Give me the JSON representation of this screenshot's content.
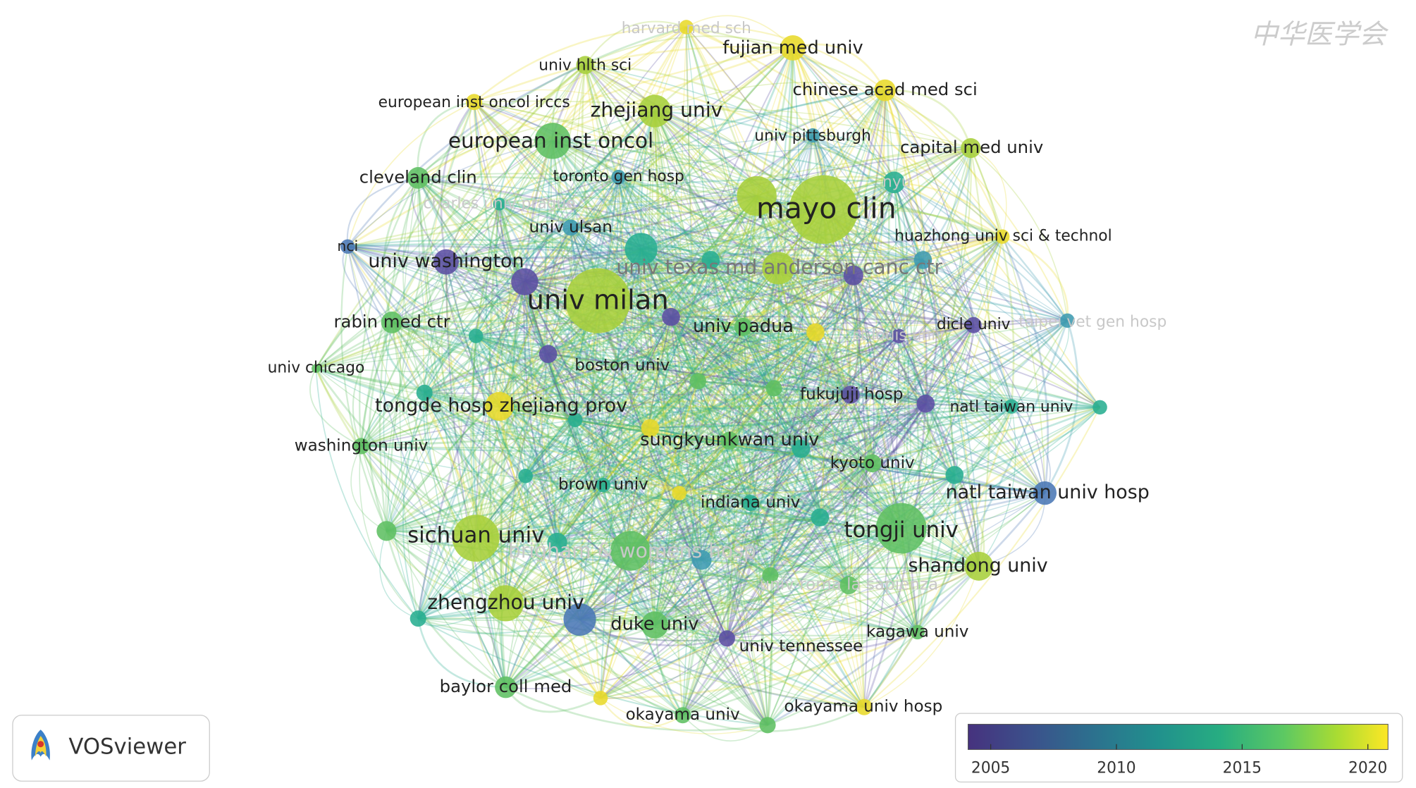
{
  "nodes": [
    {
      "label": "harvard med sch"
    },
    {
      "label": "fujian med univ"
    },
    {
      "label": "univ hlth sci"
    },
    {
      "label": "european inst oncol irccs"
    },
    {
      "label": "chinese acad med sci"
    },
    {
      "label": "zhejiang univ"
    },
    {
      "label": "univ pittsburgh"
    },
    {
      "label": "european inst oncol"
    },
    {
      "label": "capital med univ"
    },
    {
      "label": "cleveland clin"
    },
    {
      "label": "toronto gen hosp"
    },
    {
      "label": "nyu"
    },
    {
      "label": "charles univ prague"
    },
    {
      "label": "mayo clin"
    },
    {
      "label": "univ ulsan"
    },
    {
      "label": "huazhong univ sci & technol"
    },
    {
      "label": "nci"
    },
    {
      "label": "univ washington"
    },
    {
      "label": "univ texas md anderson canc ctr"
    },
    {
      "label": "univ milan"
    },
    {
      "label": "rabin med ctr"
    },
    {
      "label": "univ padua"
    },
    {
      "label": "st louis univ"
    },
    {
      "label": "dicle univ"
    },
    {
      "label": "taipei vet gen hosp"
    },
    {
      "label": "univ chicago"
    },
    {
      "label": "boston univ"
    },
    {
      "label": "fukujuji hosp"
    },
    {
      "label": "natl taiwan univ"
    },
    {
      "label": "tongde hosp zhejiang prov"
    },
    {
      "label": "washington univ"
    },
    {
      "label": "sungkyunkwan univ"
    },
    {
      "label": "kyoto univ"
    },
    {
      "label": "brown univ"
    },
    {
      "label": "natl taiwan univ hosp"
    },
    {
      "label": "indiana univ"
    },
    {
      "label": "sichuan univ"
    },
    {
      "label": "tongji univ"
    },
    {
      "label": "brigham & womens hosp"
    },
    {
      "label": "shandong univ"
    },
    {
      "label": "univ roma la sapienza"
    },
    {
      "label": "zhengzhou univ"
    },
    {
      "label": "duke univ"
    },
    {
      "label": "univ tennessee"
    },
    {
      "label": "kagawa univ"
    },
    {
      "label": "baylor coll med"
    },
    {
      "label": "okayama univ"
    },
    {
      "label": "okayama univ hosp"
    }
  ],
  "colorbar": {
    "range": [
      2004.1,
      2020.8
    ],
    "ticks": [
      2005,
      2010,
      2015,
      2020
    ]
  },
  "logo": {
    "text": "VOSviewer"
  },
  "watermark": "中华医学会"
}
